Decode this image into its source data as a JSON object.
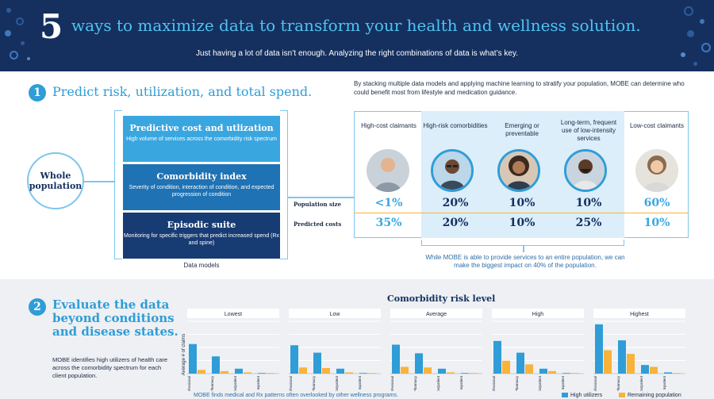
{
  "header": {
    "number": "5",
    "title": "ways to maximize data to transform your health and wellness solution.",
    "subtitle": "Just having a lot of data isn’t enough. Analyzing the right combinations of data is what’s key."
  },
  "section1": {
    "number": "1",
    "title": "Predict risk, utilization, and total spend.",
    "description": "By stacking multiple data models and applying machine learning to stratify your population, MOBE can determine who could benefit most from lifestyle and medication guidance.",
    "whole_population": "Whole population",
    "data_models_label": "Data models",
    "models": [
      {
        "title": "Predictive cost and utlization",
        "desc": "High volume of services across the comorbidity risk spectrum",
        "color": "#3aa6e0"
      },
      {
        "title": "Comorbidity index",
        "desc": "Severity of condition, interaction of condition, and expected progression of condition",
        "color": "#1f72b3"
      },
      {
        "title": "Episodic suite",
        "desc": "Monitoring for specific triggers that predict increased spend (Rx and spine)",
        "color": "#173b73"
      }
    ],
    "row_labels": {
      "population": "Population size",
      "costs": "Predicted costs"
    },
    "segments": [
      {
        "label": "High-cost claimants",
        "population": "<1%",
        "costs": "35%",
        "highlight": false,
        "icon": "person-running-icon"
      },
      {
        "label": "High-risk comorbidities",
        "population": "20%",
        "costs": "20%",
        "highlight": true,
        "icon": "person-glasses-icon"
      },
      {
        "label": "Emerging or preventable",
        "population": "10%",
        "costs": "10%",
        "highlight": true,
        "icon": "person-curly-hair-icon"
      },
      {
        "label": "Long-term, frequent use of low-intensity services",
        "population": "10%",
        "costs": "25%",
        "highlight": true,
        "icon": "person-beard-icon"
      },
      {
        "label": "Low-cost claimants",
        "population": "60%",
        "costs": "10%",
        "highlight": false,
        "icon": "person-smiling-icon"
      }
    ],
    "note": "While MOBE is able to provide services to an entire population, we can make the biggest impact on 40% of the population."
  },
  "section2": {
    "number": "2",
    "title": "Evaluate the data beyond conditions and disease states.",
    "description": "MOBE identifies high utilizers of health care across the comorbidity spectrum for each client population.",
    "footnote": "MOBE finds medical and Rx patterns often overlooked by other wellness programs.",
    "legend": [
      "High utilizers",
      "Remaining population"
    ]
  },
  "chart_data": {
    "type": "bar",
    "title": "Comorbidity risk level",
    "ylabel": "Average # of claims",
    "categories": [
      "Professional",
      "Pharmacy",
      "Outpatient",
      "Inpatient"
    ],
    "colors": {
      "High utilizers": "#2f9dd7",
      "Remaining population": "#f7b33b"
    },
    "panels": [
      {
        "name": "Lowest",
        "series": [
          {
            "name": "High utilizers",
            "values": [
              48,
              28,
              8,
              1
            ]
          },
          {
            "name": "Remaining population",
            "values": [
              6,
              4,
              2,
              0.5
            ]
          }
        ]
      },
      {
        "name": "Low",
        "series": [
          {
            "name": "High utilizers",
            "values": [
              46,
              34,
              8,
              1
            ]
          },
          {
            "name": "Remaining population",
            "values": [
              10,
              9,
              2,
              0.5
            ]
          }
        ]
      },
      {
        "name": "Average",
        "series": [
          {
            "name": "High utilizers",
            "values": [
              47,
              33,
              8,
              1
            ]
          },
          {
            "name": "Remaining population",
            "values": [
              11,
              10,
              2,
              0.5
            ]
          }
        ]
      },
      {
        "name": "High",
        "series": [
          {
            "name": "High utilizers",
            "values": [
              53,
              34,
              8,
              1
            ]
          },
          {
            "name": "Remaining population",
            "values": [
              21,
              15,
              4,
              0.5
            ]
          }
        ]
      },
      {
        "name": "Highest",
        "series": [
          {
            "name": "High utilizers",
            "values": [
              80,
              54,
              14,
              2
            ]
          },
          {
            "name": "Remaining population",
            "values": [
              38,
              32,
              11,
              1
            ]
          }
        ]
      }
    ],
    "ylim": [
      0,
      85
    ]
  }
}
